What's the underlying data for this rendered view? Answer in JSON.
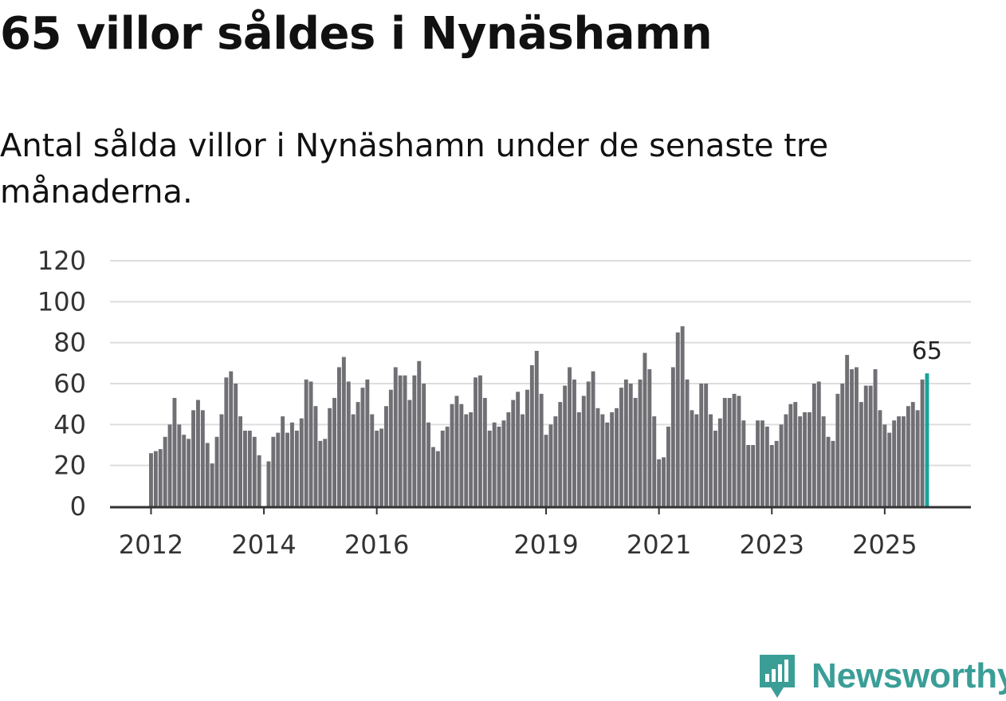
{
  "title": "65 villor såldes i Nynäshamn",
  "subtitle": "Antal sålda villor i Nynäshamn under de senaste tre månaderna.",
  "brand": {
    "name": "Newsworthy"
  },
  "colors": {
    "bar": "#6f6f74",
    "highlight": "#16a39a",
    "grid": "#dddddd",
    "axis": "#333333",
    "brand": "#3a9e97"
  },
  "chart_data": {
    "type": "bar",
    "title": "65 villor såldes i Nynäshamn",
    "xlabel": "",
    "ylabel": "",
    "ylim": [
      0,
      120
    ],
    "yticks": [
      0,
      20,
      40,
      60,
      80,
      100,
      120
    ],
    "grid": true,
    "xtick_labels": [
      "2012",
      "2014",
      "2016",
      "2019",
      "2021",
      "2023",
      "2025"
    ],
    "xtick_index": [
      0,
      24,
      48,
      84,
      108,
      132,
      156
    ],
    "annotation": {
      "label": "65",
      "index": 165
    },
    "highlight_index": 165,
    "start": "2012-01",
    "values": [
      26,
      27,
      28,
      34,
      40,
      53,
      40,
      35,
      33,
      47,
      52,
      47,
      31,
      21,
      34,
      45,
      63,
      66,
      60,
      44,
      37,
      37,
      34,
      25,
      0,
      22,
      34,
      36,
      44,
      36,
      41,
      37,
      43,
      62,
      61,
      49,
      32,
      33,
      48,
      53,
      68,
      73,
      61,
      45,
      51,
      58,
      62,
      45,
      37,
      38,
      49,
      57,
      68,
      64,
      64,
      52,
      64,
      71,
      60,
      41,
      29,
      27,
      37,
      39,
      50,
      54,
      50,
      45,
      46,
      63,
      64,
      53,
      37,
      41,
      39,
      42,
      46,
      52,
      56,
      45,
      57,
      69,
      76,
      55,
      35,
      40,
      44,
      51,
      59,
      68,
      62,
      46,
      54,
      61,
      66,
      48,
      45,
      41,
      46,
      48,
      58,
      62,
      60,
      53,
      62,
      75,
      67,
      44,
      23,
      24,
      39,
      68,
      85,
      88,
      62,
      47,
      45,
      60,
      60,
      45,
      37,
      43,
      53,
      53,
      55,
      54,
      42,
      30,
      30,
      42,
      42,
      39,
      30,
      32,
      40,
      45,
      50,
      51,
      44,
      46,
      46,
      60,
      61,
      44,
      34,
      32,
      55,
      60,
      74,
      67,
      68,
      51,
      59,
      59,
      67,
      47,
      40,
      36,
      42,
      44,
      44,
      49,
      51,
      47,
      62,
      65
    ]
  }
}
